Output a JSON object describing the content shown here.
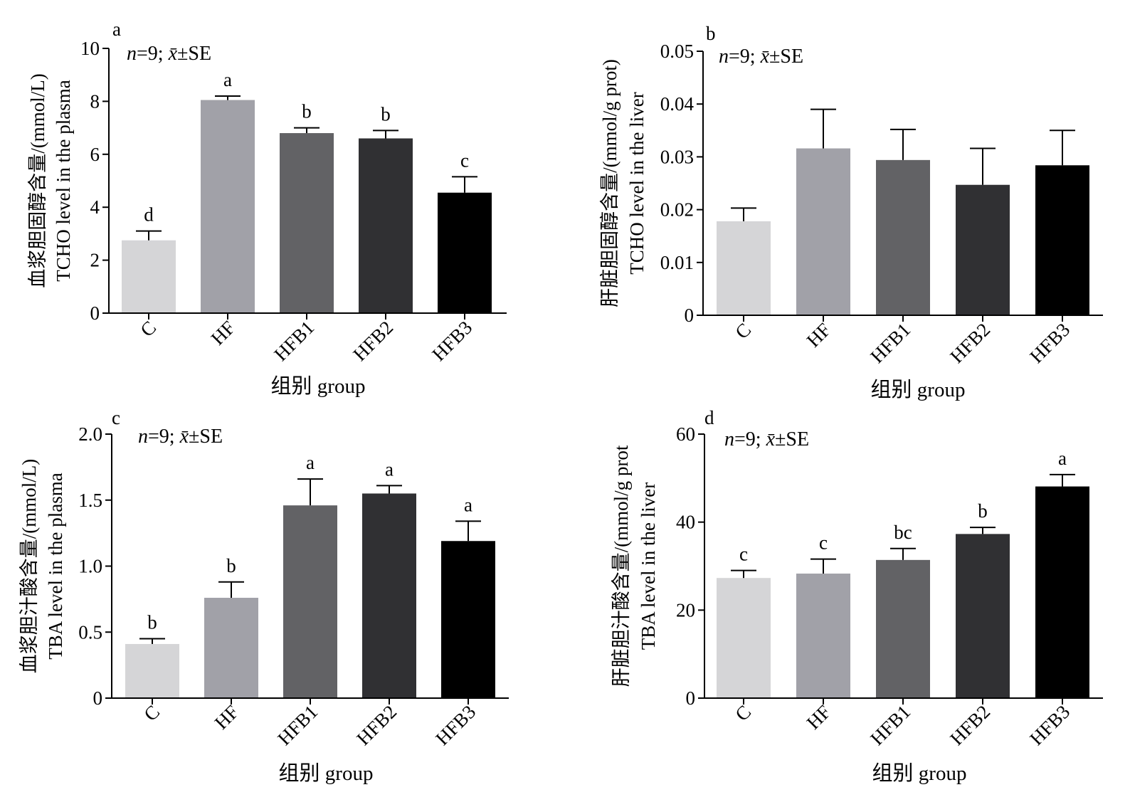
{
  "colors": {
    "bar_colors": [
      "#d5d5d7",
      "#a1a1a8",
      "#626265",
      "#303033",
      "#000000"
    ]
  },
  "chart_data": [
    {
      "panel": "a",
      "type": "bar",
      "categories": [
        "C",
        "HF",
        "HFB1",
        "HFB2",
        "HFB3"
      ],
      "values": [
        2.75,
        8.05,
        6.8,
        6.6,
        4.55
      ],
      "errors": [
        0.35,
        0.15,
        0.2,
        0.3,
        0.6
      ],
      "significance": [
        "d",
        "a",
        "b",
        "b",
        "c"
      ],
      "ylim": [
        0,
        10
      ],
      "yticks": [
        "0",
        "2",
        "4",
        "6",
        "8",
        "10"
      ],
      "ylabel_cn": "血浆胆固醇含量/(mmol/L)",
      "ylabel_en": "TCHO level in the plasma",
      "xlabel": "组别 group",
      "stat_note": "n=9; x̄±SE"
    },
    {
      "panel": "b",
      "type": "bar",
      "categories": [
        "C",
        "HF",
        "HFB1",
        "HFB2",
        "HFB3"
      ],
      "values": [
        0.0178,
        0.0316,
        0.0294,
        0.0247,
        0.0284
      ],
      "errors": [
        0.0025,
        0.0074,
        0.0058,
        0.0069,
        0.0066
      ],
      "significance": [
        "",
        "",
        "",
        "",
        ""
      ],
      "ylim": [
        0,
        0.05
      ],
      "yticks": [
        "0",
        "0.01",
        "0.02",
        "0.03",
        "0.04",
        "0.05"
      ],
      "ylabel_cn": "肝脏胆固醇含量/(mmol/g prot)",
      "ylabel_en": "TCHO level in the liver",
      "xlabel": "组别 group",
      "stat_note": "n=9; x̄±SE"
    },
    {
      "panel": "c",
      "type": "bar",
      "categories": [
        "C",
        "HF",
        "HFB1",
        "HFB2",
        "HFB3"
      ],
      "values": [
        0.41,
        0.76,
        1.46,
        1.55,
        1.19
      ],
      "errors": [
        0.04,
        0.12,
        0.2,
        0.06,
        0.15
      ],
      "significance": [
        "b",
        "b",
        "a",
        "a",
        "a"
      ],
      "ylim": [
        0,
        2.0
      ],
      "yticks": [
        "0",
        "0.5",
        "1.0",
        "1.5",
        "2.0"
      ],
      "ylabel_cn": "血浆胆汁酸含量/(mmol/L)",
      "ylabel_en": "TBA level in the plasma",
      "xlabel": "组别 group",
      "stat_note": "n=9; x̄±SE"
    },
    {
      "panel": "d",
      "type": "bar",
      "categories": [
        "C",
        "HF",
        "HFB1",
        "HFB2",
        "HFB3"
      ],
      "values": [
        27.3,
        28.3,
        31.4,
        37.3,
        48.1
      ],
      "errors": [
        1.7,
        3.3,
        2.6,
        1.5,
        2.7
      ],
      "significance": [
        "c",
        "c",
        "bc",
        "b",
        "a"
      ],
      "ylim": [
        0,
        60
      ],
      "yticks": [
        "0",
        "20",
        "40",
        "60"
      ],
      "ylabel_cn": "肝脏胆汁酸含量/(mmol/g prot",
      "ylabel_en": "TBA level in the liver",
      "xlabel": "组别 group",
      "stat_note": "n=9; x̄±SE"
    }
  ]
}
